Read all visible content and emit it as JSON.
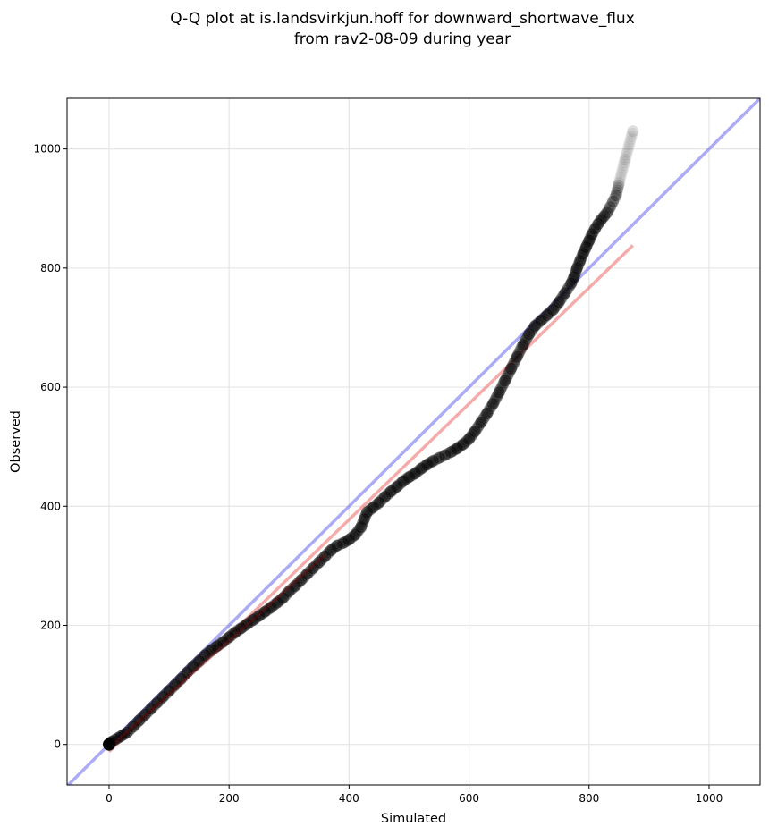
{
  "chart_data": {
    "type": "scatter",
    "title": "Q-Q plot at is.landsvirkjun.hoff for downward_shortwave_flux",
    "subtitle": "from rav2-08-09 during year",
    "xlabel": "Simulated",
    "ylabel": "Observed",
    "xlim": [
      -70,
      1085
    ],
    "ylim": [
      -68,
      1085
    ],
    "xticks": [
      0,
      200,
      400,
      600,
      800,
      1000
    ],
    "yticks": [
      0,
      200,
      400,
      600,
      800,
      1000
    ],
    "grid": true,
    "legend": "none",
    "colors": {
      "points": "#000000",
      "identity_line": "#6666ee",
      "fit_line": "#ee6666",
      "lower_overlay": "#8b0000"
    },
    "identity_line": {
      "x": [
        -70,
        1085
      ],
      "y": [
        -70,
        1085
      ]
    },
    "fit_line": {
      "x": [
        0,
        873
      ],
      "y": [
        -12,
        838
      ]
    },
    "series": [
      {
        "points": [
          [
            0,
            0
          ],
          [
            2,
            3
          ],
          [
            5,
            5
          ],
          [
            10,
            8
          ],
          [
            15,
            11
          ],
          [
            20,
            14
          ],
          [
            25,
            17
          ],
          [
            30,
            20
          ],
          [
            40,
            30
          ],
          [
            50,
            40
          ],
          [
            60,
            50
          ],
          [
            70,
            60
          ],
          [
            80,
            70
          ],
          [
            90,
            80
          ],
          [
            100,
            90
          ],
          [
            110,
            100
          ],
          [
            120,
            110
          ],
          [
            130,
            121
          ],
          [
            140,
            131
          ],
          [
            150,
            140
          ],
          [
            160,
            150
          ],
          [
            170,
            158
          ],
          [
            180,
            165
          ],
          [
            190,
            172
          ],
          [
            200,
            180
          ],
          [
            210,
            188
          ],
          [
            220,
            195
          ],
          [
            230,
            202
          ],
          [
            240,
            209
          ],
          [
            250,
            216
          ],
          [
            260,
            223
          ],
          [
            270,
            230
          ],
          [
            280,
            238
          ],
          [
            290,
            246
          ],
          [
            300,
            257
          ],
          [
            310,
            266
          ],
          [
            320,
            276
          ],
          [
            330,
            286
          ],
          [
            340,
            296
          ],
          [
            350,
            306
          ],
          [
            360,
            316
          ],
          [
            370,
            326
          ],
          [
            380,
            334
          ],
          [
            390,
            338
          ],
          [
            400,
            344
          ],
          [
            410,
            352
          ],
          [
            420,
            365
          ],
          [
            425,
            378
          ],
          [
            430,
            390
          ],
          [
            440,
            398
          ],
          [
            450,
            406
          ],
          [
            460,
            416
          ],
          [
            470,
            425
          ],
          [
            480,
            433
          ],
          [
            490,
            442
          ],
          [
            500,
            449
          ],
          [
            510,
            455
          ],
          [
            520,
            463
          ],
          [
            530,
            470
          ],
          [
            540,
            476
          ],
          [
            550,
            481
          ],
          [
            560,
            486
          ],
          [
            570,
            491
          ],
          [
            580,
            497
          ],
          [
            590,
            504
          ],
          [
            600,
            513
          ],
          [
            610,
            526
          ],
          [
            620,
            541
          ],
          [
            630,
            556
          ],
          [
            640,
            572
          ],
          [
            650,
            591
          ],
          [
            660,
            611
          ],
          [
            670,
            631
          ],
          [
            680,
            651
          ],
          [
            690,
            671
          ],
          [
            700,
            689
          ],
          [
            710,
            703
          ],
          [
            720,
            712
          ],
          [
            730,
            721
          ],
          [
            740,
            730
          ],
          [
            750,
            743
          ],
          [
            760,
            758
          ],
          [
            770,
            774
          ],
          [
            775,
            785
          ],
          [
            780,
            800
          ],
          [
            785,
            812
          ],
          [
            790,
            824
          ],
          [
            795,
            835
          ],
          [
            800,
            846
          ],
          [
            805,
            857
          ],
          [
            810,
            866
          ],
          [
            815,
            874
          ],
          [
            820,
            881
          ],
          [
            825,
            887
          ],
          [
            830,
            893
          ],
          [
            835,
            902
          ],
          [
            840,
            912
          ],
          [
            845,
            922
          ],
          [
            850,
            943
          ],
          [
            860,
            982
          ],
          [
            873,
            1030
          ]
        ]
      }
    ]
  }
}
